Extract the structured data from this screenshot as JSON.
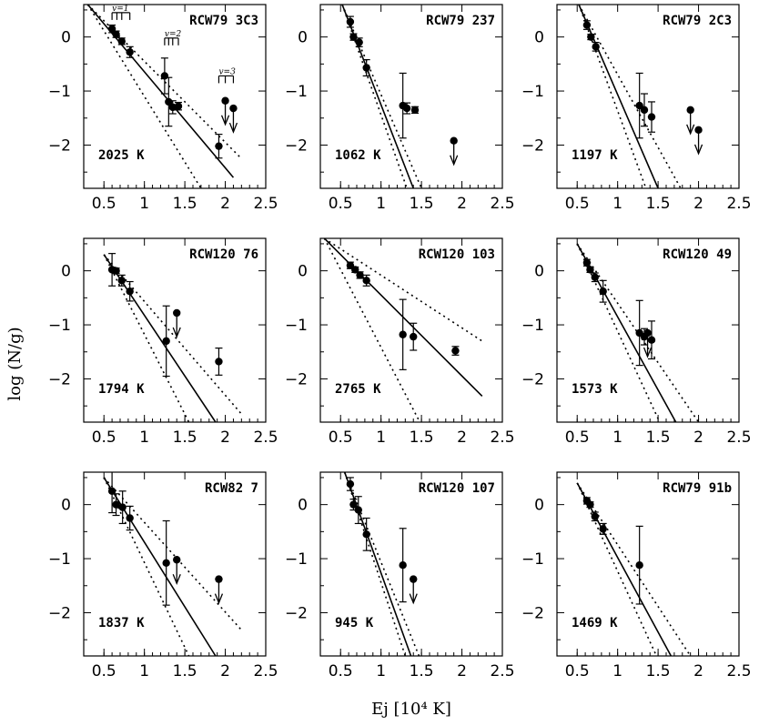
{
  "chart_data": {
    "type": "scatter",
    "xlabel": "Ej [10⁴ K]",
    "ylabel": "log (N/g)",
    "xlim": [
      0.25,
      2.5
    ],
    "ylim": [
      -2.8,
      0.6
    ],
    "xticks": [
      0.5,
      1,
      1.5,
      2,
      2.5
    ],
    "xtick_labels": [
      "0.5",
      "1",
      "1.5",
      "2",
      "2.5"
    ],
    "yticks": [
      0,
      -1,
      -2
    ],
    "ytick_labels": [
      "0",
      "−1",
      "−2"
    ],
    "vib_labels": [
      "v=1",
      "v=2",
      "v=3"
    ],
    "panels": [
      {
        "name": "RCW79 3C3",
        "temperature": "2025 K",
        "fit": [
          [
            0.3,
            0.6
          ],
          [
            2.1,
            -2.6
          ]
        ],
        "env_low": [
          [
            0.3,
            0.6
          ],
          [
            1.7,
            -2.8
          ]
        ],
        "env_high": [
          [
            0.3,
            0.6
          ],
          [
            2.2,
            -2.25
          ]
        ],
        "points": [
          {
            "x": 0.6,
            "y": 0.15,
            "err": 0.07
          },
          {
            "x": 0.65,
            "y": 0.05,
            "err": 0.06
          },
          {
            "x": 0.72,
            "y": -0.08,
            "err": 0.06
          },
          {
            "x": 0.82,
            "y": -0.28,
            "err": 0.1
          },
          {
            "x": 1.25,
            "y": -0.72,
            "err": 0.33
          },
          {
            "x": 1.3,
            "y": -1.2,
            "err": 0.45
          },
          {
            "x": 1.35,
            "y": -1.3,
            "err": 0.12
          },
          {
            "x": 1.42,
            "y": -1.28,
            "err": 0.07
          },
          {
            "x": 1.92,
            "y": -2.02,
            "err": 0.22
          }
        ],
        "upper_limits": [
          {
            "x": 2.0,
            "y": -1.18
          },
          {
            "x": 2.1,
            "y": -1.32
          }
        ],
        "show_vib": true
      },
      {
        "name": "RCW79 237",
        "temperature": "1062 K",
        "fit": [
          [
            0.52,
            0.6
          ],
          [
            1.4,
            -2.8
          ]
        ],
        "env_low": [
          [
            0.52,
            0.6
          ],
          [
            1.32,
            -2.8
          ]
        ],
        "env_high": [
          [
            0.52,
            0.6
          ],
          [
            1.5,
            -2.8
          ]
        ],
        "points": [
          {
            "x": 0.62,
            "y": 0.28,
            "err": 0.1
          },
          {
            "x": 0.66,
            "y": 0.0,
            "err": 0.06
          },
          {
            "x": 0.73,
            "y": -0.1,
            "err": 0.08
          },
          {
            "x": 0.82,
            "y": -0.57,
            "err": 0.15
          },
          {
            "x": 1.27,
            "y": -1.27,
            "err": 0.6
          },
          {
            "x": 1.32,
            "y": -1.32,
            "err": 0.1
          },
          {
            "x": 1.42,
            "y": -1.35,
            "err": 0.06
          }
        ],
        "upper_limits": [
          {
            "x": 1.9,
            "y": -1.92
          }
        ],
        "show_vib": false
      },
      {
        "name": "RCW79 2C3",
        "temperature": "1197 K",
        "fit": [
          [
            0.52,
            0.6
          ],
          [
            1.5,
            -2.8
          ]
        ],
        "env_low": [
          [
            0.52,
            0.6
          ],
          [
            1.35,
            -2.8
          ]
        ],
        "env_high": [
          [
            0.52,
            0.6
          ],
          [
            1.78,
            -2.8
          ]
        ],
        "points": [
          {
            "x": 0.62,
            "y": 0.22,
            "err": 0.08
          },
          {
            "x": 0.67,
            "y": 0.0,
            "err": 0.05
          },
          {
            "x": 0.73,
            "y": -0.18,
            "err": 0.08
          },
          {
            "x": 1.27,
            "y": -1.27,
            "err": 0.6
          },
          {
            "x": 1.33,
            "y": -1.35,
            "err": 0.3
          },
          {
            "x": 1.42,
            "y": -1.48,
            "err": 0.28
          }
        ],
        "upper_limits": [
          {
            "x": 1.9,
            "y": -1.35
          },
          {
            "x": 2.0,
            "y": -1.72
          }
        ],
        "show_vib": false
      },
      {
        "name": "RCW120 76",
        "temperature": "1794 K",
        "fit": [
          [
            0.5,
            0.3
          ],
          [
            1.88,
            -2.8
          ]
        ],
        "env_low": [
          [
            0.5,
            0.3
          ],
          [
            1.55,
            -2.8
          ]
        ],
        "env_high": [
          [
            0.5,
            0.3
          ],
          [
            2.2,
            -2.65
          ]
        ],
        "points": [
          {
            "x": 0.6,
            "y": 0.02,
            "err": 0.3
          },
          {
            "x": 0.65,
            "y": 0.0,
            "err": 0.05
          },
          {
            "x": 0.72,
            "y": -0.18,
            "err": 0.1
          },
          {
            "x": 0.82,
            "y": -0.38,
            "err": 0.18
          },
          {
            "x": 1.27,
            "y": -1.3,
            "err": 0.65
          },
          {
            "x": 1.92,
            "y": -1.68,
            "err": 0.25
          }
        ],
        "upper_limits": [
          {
            "x": 1.4,
            "y": -0.78
          }
        ],
        "show_vib": false
      },
      {
        "name": "RCW120 103",
        "temperature": "2765 K",
        "fit": [
          [
            0.3,
            0.6
          ],
          [
            2.25,
            -2.32
          ]
        ],
        "env_low": [
          [
            0.3,
            0.6
          ],
          [
            1.48,
            -2.8
          ]
        ],
        "env_high": [
          [
            0.3,
            0.6
          ],
          [
            2.25,
            -1.3
          ]
        ],
        "points": [
          {
            "x": 0.62,
            "y": 0.1,
            "err": 0.06
          },
          {
            "x": 0.68,
            "y": 0.02,
            "err": 0.05
          },
          {
            "x": 0.74,
            "y": -0.08,
            "err": 0.06
          },
          {
            "x": 0.82,
            "y": -0.18,
            "err": 0.1
          },
          {
            "x": 1.27,
            "y": -1.18,
            "err": 0.65
          },
          {
            "x": 1.4,
            "y": -1.22,
            "err": 0.25
          },
          {
            "x": 1.92,
            "y": -1.48,
            "err": 0.08
          }
        ],
        "upper_limits": [],
        "show_vib": false
      },
      {
        "name": "RCW120 49",
        "temperature": "1573 K",
        "fit": [
          [
            0.5,
            0.5
          ],
          [
            1.72,
            -2.8
          ]
        ],
        "env_low": [
          [
            0.5,
            0.5
          ],
          [
            1.52,
            -2.8
          ]
        ],
        "env_high": [
          [
            0.5,
            0.5
          ],
          [
            2.0,
            -2.8
          ]
        ],
        "points": [
          {
            "x": 0.62,
            "y": 0.15,
            "err": 0.06
          },
          {
            "x": 0.66,
            "y": 0.02,
            "err": 0.05
          },
          {
            "x": 0.72,
            "y": -0.12,
            "err": 0.08
          },
          {
            "x": 0.82,
            "y": -0.38,
            "err": 0.2
          },
          {
            "x": 1.27,
            "y": -1.15,
            "err": 0.6
          },
          {
            "x": 1.33,
            "y": -1.22,
            "err": 0.15
          },
          {
            "x": 1.42,
            "y": -1.28,
            "err": 0.35
          }
        ],
        "upper_limits": [
          {
            "x": 1.37,
            "y": -1.15
          }
        ],
        "show_vib": false
      },
      {
        "name": "RCW82 7",
        "temperature": "1837 K",
        "fit": [
          [
            0.5,
            0.5
          ],
          [
            1.88,
            -2.8
          ]
        ],
        "env_low": [
          [
            0.5,
            0.5
          ],
          [
            1.55,
            -2.8
          ]
        ],
        "env_high": [
          [
            0.5,
            0.5
          ],
          [
            2.2,
            -2.32
          ]
        ],
        "points": [
          {
            "x": 0.6,
            "y": 0.25,
            "err": 0.4
          },
          {
            "x": 0.65,
            "y": 0.0,
            "err": 0.2
          },
          {
            "x": 0.73,
            "y": -0.05,
            "err": 0.3
          },
          {
            "x": 0.82,
            "y": -0.25,
            "err": 0.22
          },
          {
            "x": 1.27,
            "y": -1.08,
            "err": 0.78
          }
        ],
        "upper_limits": [
          {
            "x": 1.4,
            "y": -1.02
          },
          {
            "x": 1.92,
            "y": -1.38
          }
        ],
        "show_vib": false
      },
      {
        "name": "RCW120 107",
        "temperature": "945 K",
        "fit": [
          [
            0.55,
            0.6
          ],
          [
            1.37,
            -2.8
          ]
        ],
        "env_low": [
          [
            0.55,
            0.6
          ],
          [
            1.3,
            -2.8
          ]
        ],
        "env_high": [
          [
            0.55,
            0.6
          ],
          [
            1.47,
            -2.8
          ]
        ],
        "points": [
          {
            "x": 0.62,
            "y": 0.38,
            "err": 0.12
          },
          {
            "x": 0.66,
            "y": 0.0,
            "err": 0.1
          },
          {
            "x": 0.72,
            "y": -0.1,
            "err": 0.25
          },
          {
            "x": 0.82,
            "y": -0.55,
            "err": 0.3
          },
          {
            "x": 1.27,
            "y": -1.12,
            "err": 0.68
          }
        ],
        "upper_limits": [
          {
            "x": 1.4,
            "y": -1.38
          }
        ],
        "show_vib": false
      },
      {
        "name": "RCW79 91b",
        "temperature": "1469 K",
        "fit": [
          [
            0.5,
            0.4
          ],
          [
            1.66,
            -2.8
          ]
        ],
        "env_low": [
          [
            0.5,
            0.4
          ],
          [
            1.48,
            -2.8
          ]
        ],
        "env_high": [
          [
            0.5,
            0.4
          ],
          [
            1.9,
            -2.8
          ]
        ],
        "points": [
          {
            "x": 0.62,
            "y": 0.07,
            "err": 0.06
          },
          {
            "x": 0.66,
            "y": 0.0,
            "err": 0.05
          },
          {
            "x": 0.72,
            "y": -0.22,
            "err": 0.08
          },
          {
            "x": 0.82,
            "y": -0.45,
            "err": 0.1
          },
          {
            "x": 1.27,
            "y": -1.12,
            "err": 0.72
          }
        ],
        "upper_limits": [],
        "show_vib": false
      }
    ]
  }
}
